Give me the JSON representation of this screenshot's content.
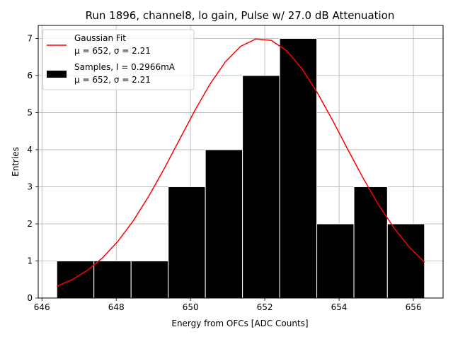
{
  "chart_data": {
    "type": "bar",
    "title": "Run 1896, channel8, lo gain, Pulse w/ 27.0 dB Attenuation",
    "xlabel": "Energy from OFCs [ADC Counts]",
    "ylabel": "Entries",
    "xlim": [
      645.9,
      656.8
    ],
    "ylim": [
      0,
      7.35
    ],
    "xticks": [
      646,
      648,
      650,
      652,
      654,
      656
    ],
    "yticks": [
      0,
      1,
      2,
      3,
      4,
      5,
      6,
      7
    ],
    "grid": true,
    "legend_position": "top-left",
    "histogram": {
      "name": "Samples, I = 0.2966mA",
      "stats": "μ = 652, σ = 2.21",
      "color": "#000000",
      "edge_color": "#ffffff",
      "bin_edges": [
        646.4,
        647.4,
        648.4,
        649.4,
        650.4,
        651.4,
        652.4,
        653.4,
        654.4,
        655.3,
        656.3
      ],
      "counts": [
        1,
        1,
        1,
        3,
        4,
        6,
        7,
        2,
        3,
        2
      ]
    },
    "fit": {
      "name": "Gaussian Fit",
      "stats": "μ = 652, σ = 2.21",
      "color": "#ff0000",
      "mu": 651.9,
      "sigma": 2.21,
      "amplitude": 7.0,
      "x_range": [
        646.4,
        656.3
      ]
    }
  }
}
